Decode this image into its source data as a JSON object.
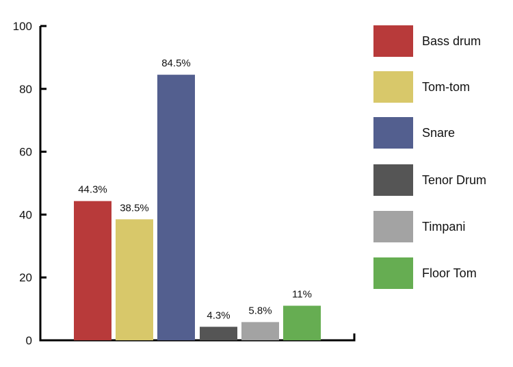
{
  "chart_data": {
    "type": "bar",
    "categories": [
      "Bass drum",
      "Tom-tom",
      "Snare",
      "Tenor Drum",
      "Timpani",
      "Floor Tom"
    ],
    "values": [
      44.3,
      38.5,
      84.5,
      4.3,
      5.8,
      11
    ],
    "data_labels": [
      "44.3%",
      "38.5%",
      "84.5%",
      "4.3%",
      "5.8%",
      "11%"
    ],
    "colors": [
      "#b83a3a",
      "#d8c86a",
      "#535f8f",
      "#555555",
      "#a3a3a3",
      "#66ad52"
    ],
    "yticks": [
      "0",
      "20",
      "40",
      "60",
      "80",
      "100"
    ],
    "ylim": [
      0,
      100
    ],
    "grid": false,
    "legend_position": "right"
  }
}
